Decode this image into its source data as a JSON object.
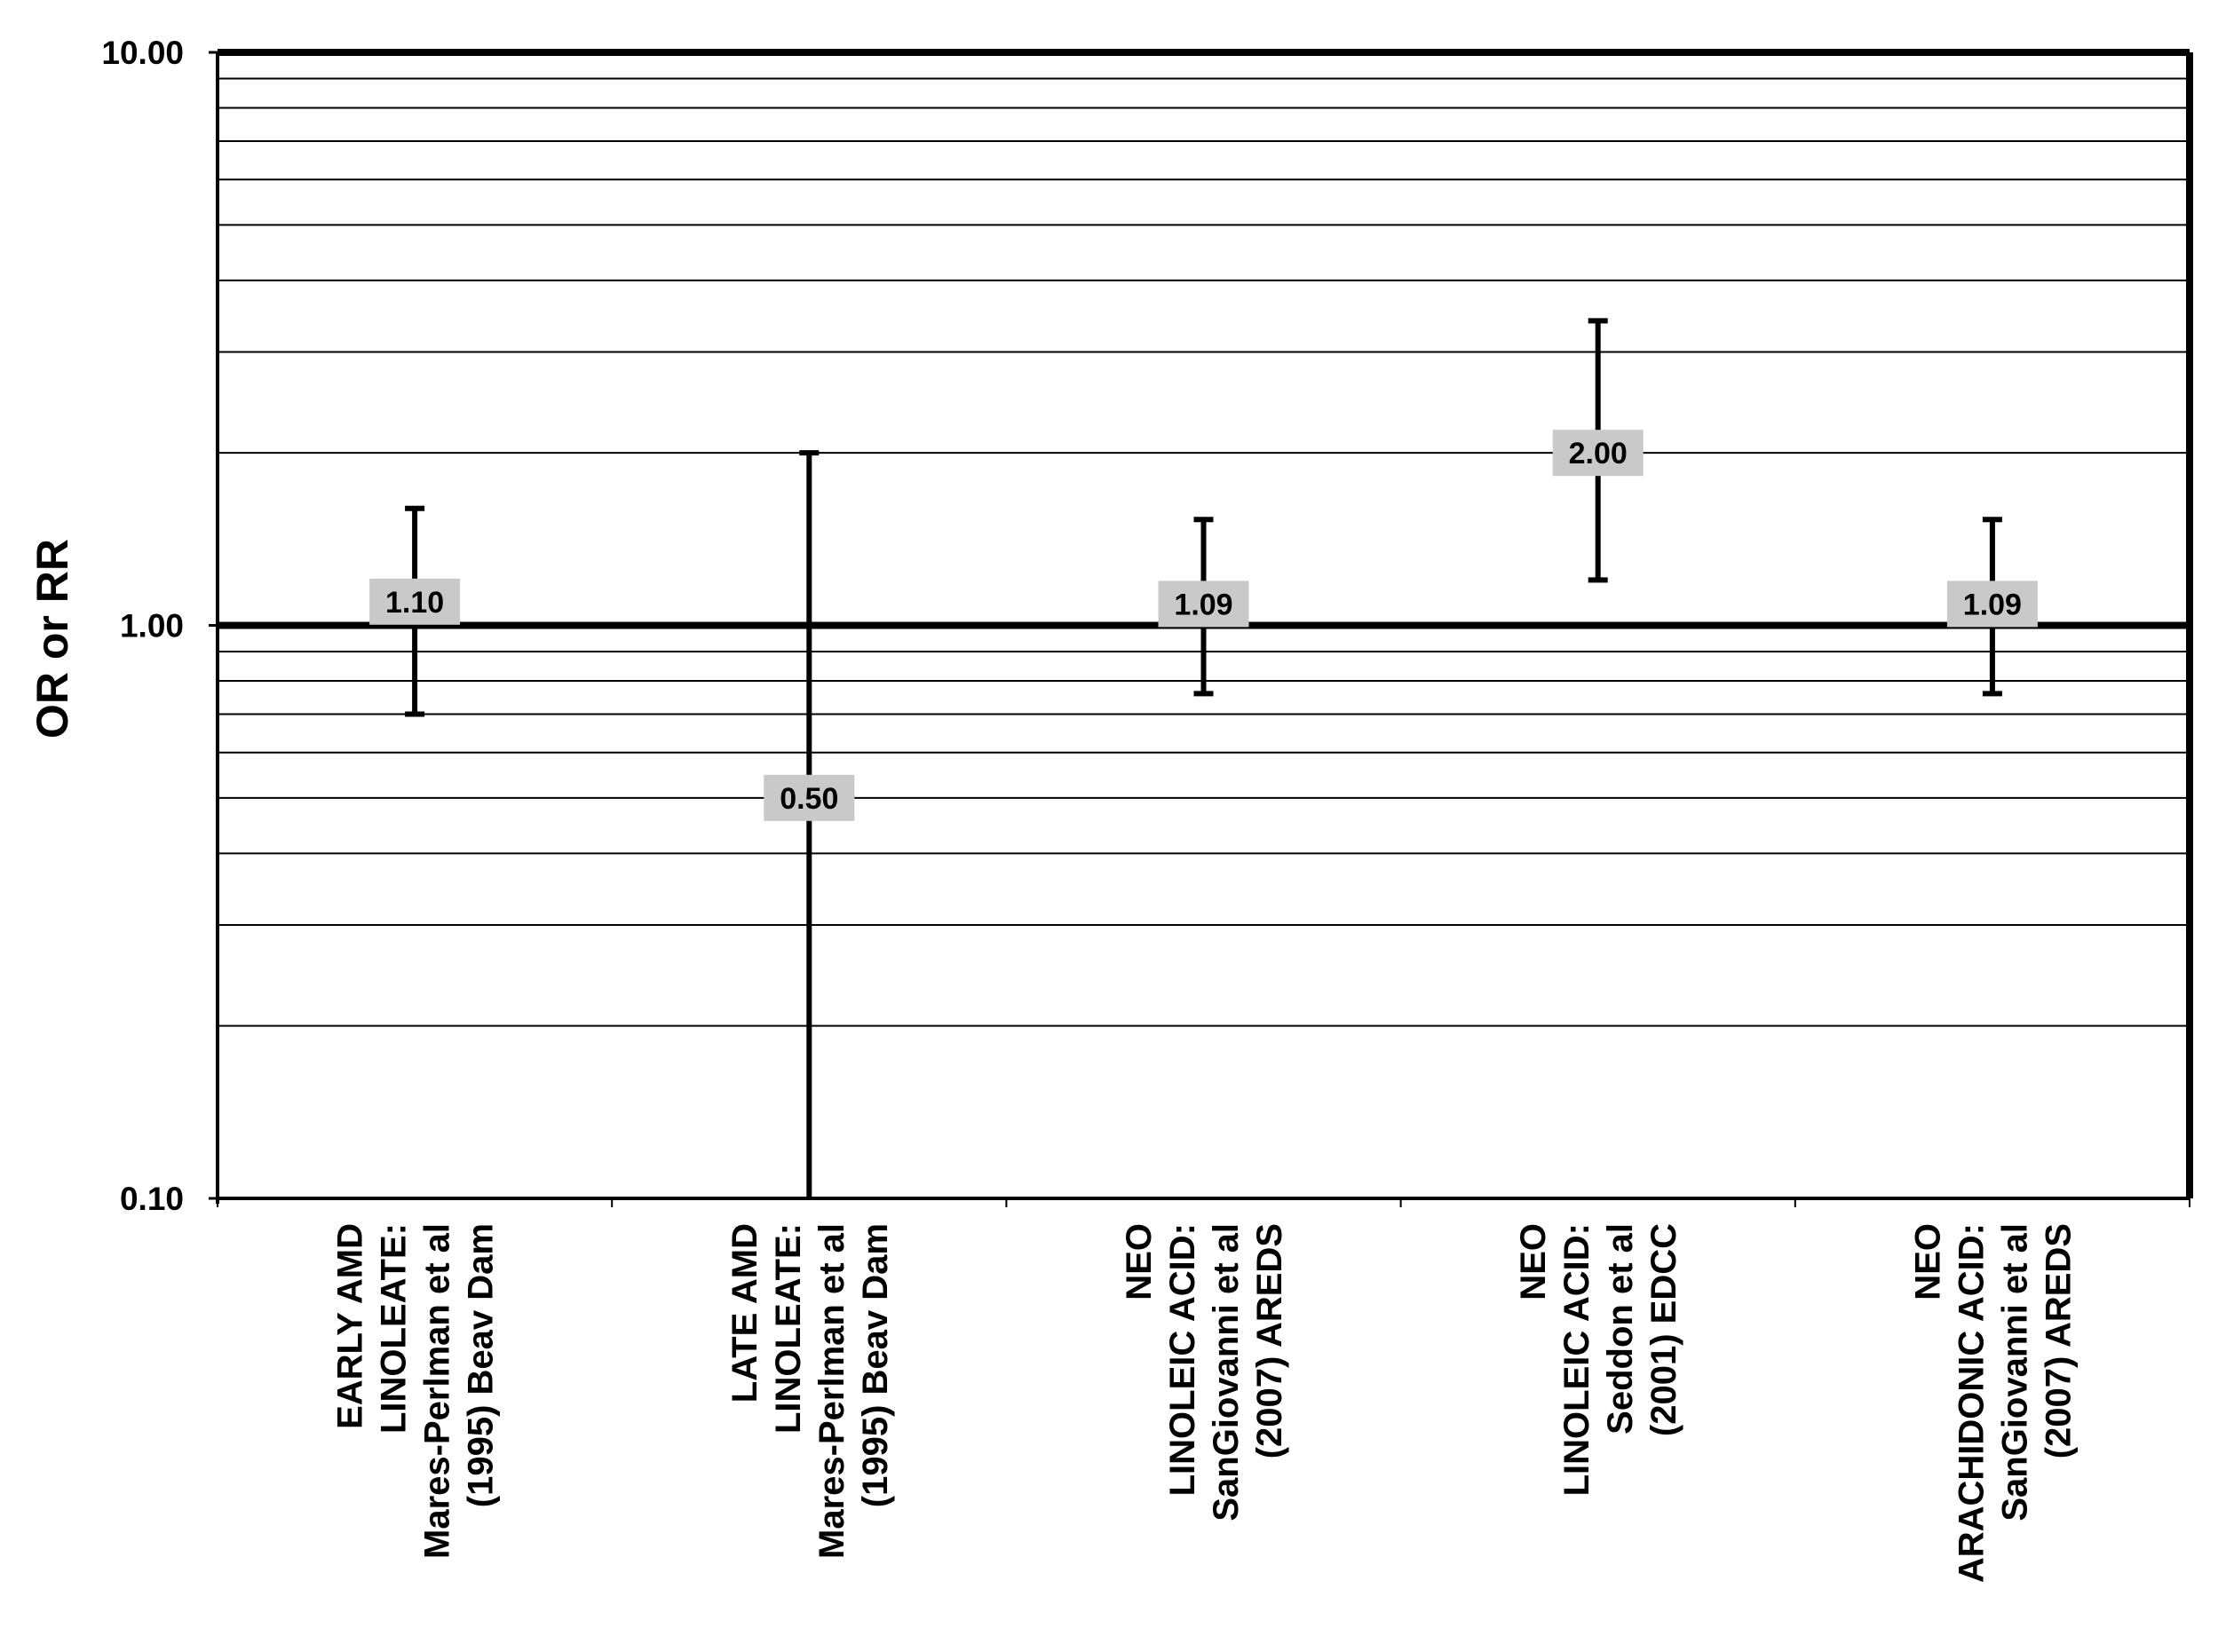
{
  "chart_data": {
    "type": "scatter",
    "subtype": "error-bar",
    "title": "",
    "ylabel": "OR or RR",
    "xlabel": "",
    "yscale": "log",
    "ylim": [
      0.1,
      10
    ],
    "yticks": [
      0.1,
      1,
      10
    ],
    "ytick_labels": [
      "0.10",
      "1.00",
      "10.00"
    ],
    "grid": true,
    "reference_line": 1,
    "categories": [
      [
        "EARLY AMD",
        "LINOLEATE:",
        "Mares-Perlman et al",
        "(1995) Beav Dam"
      ],
      [
        "LATE AMD",
        "LINOLEATE:",
        "Mares-Perlman et al",
        "(1995) Beav Dam"
      ],
      [
        "NEO",
        "LINOLEIC ACID:",
        "SanGiovanni et al",
        "(2007) AREDS"
      ],
      [
        "NEO",
        "LINOLEIC ACID:",
        "Seddon et al",
        "(2001) EDCC"
      ],
      [
        "NEO",
        "ARACHIDONIC ACID:",
        "SanGiovanni et al",
        "(2007) AREDS"
      ]
    ],
    "points": [
      {
        "value": 1.1,
        "label": "1.10",
        "lower": 0.7,
        "upper": 1.6
      },
      {
        "value": 0.5,
        "label": "0.50",
        "lower": 0.1,
        "upper": 2.0
      },
      {
        "value": 1.09,
        "label": "1.09",
        "lower": 0.76,
        "upper": 1.53
      },
      {
        "value": 2.0,
        "label": "2.00",
        "lower": 1.2,
        "upper": 3.4
      },
      {
        "value": 1.09,
        "label": "1.09",
        "lower": 0.76,
        "upper": 1.53
      }
    ]
  }
}
